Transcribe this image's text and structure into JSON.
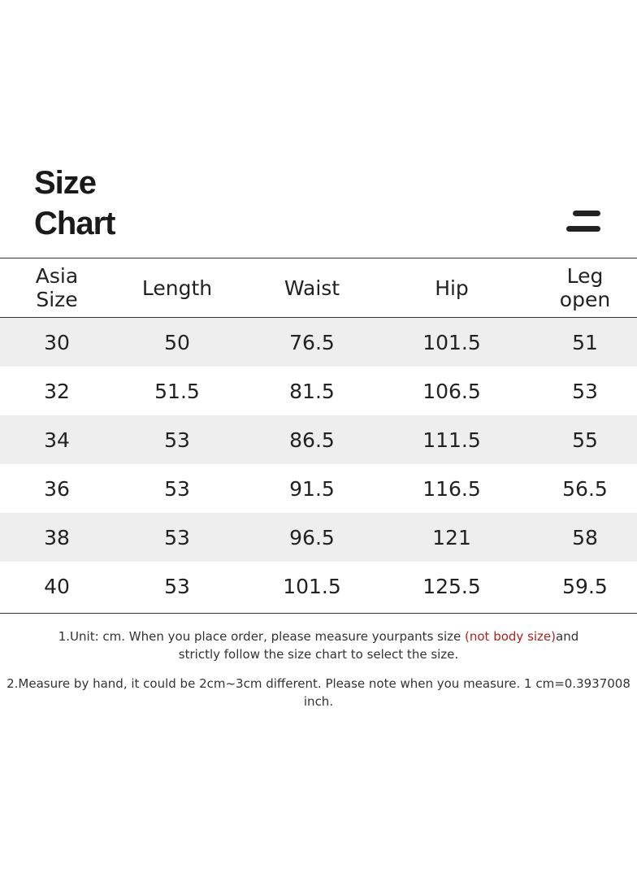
{
  "title": {
    "line1": "Size",
    "line2": "Chart"
  },
  "logo": {
    "icon": "two-bar-logo-icon"
  },
  "table": {
    "headers": [
      {
        "line1": "Asia",
        "line2": "Size"
      },
      {
        "line1": "Length",
        "line2": ""
      },
      {
        "line1": "Waist",
        "line2": ""
      },
      {
        "line1": "Hip",
        "line2": ""
      },
      {
        "line1": "Leg",
        "line2": "open"
      }
    ],
    "rows": [
      [
        "30",
        "50",
        "76.5",
        "101.5",
        "51"
      ],
      [
        "32",
        "51.5",
        "81.5",
        "106.5",
        "53"
      ],
      [
        "34",
        "53",
        "86.5",
        "111.5",
        "55"
      ],
      [
        "36",
        "53",
        "91.5",
        "116.5",
        "56.5"
      ],
      [
        "38",
        "53",
        "96.5",
        "121",
        "58"
      ],
      [
        "40",
        "53",
        "101.5",
        "125.5",
        "59.5"
      ]
    ]
  },
  "notes": {
    "note1_part1": "1.Unit: cm. When you place order, please measure yourpants size ",
    "note1_highlight": "(not body size)",
    "note1_part2": "and",
    "note1_line2": "strictly follow the size chart to select the size.",
    "note2": "2.Measure by hand, it could be 2cm~3cm different. Please note when you measure. 1 cm=0.3937008 inch."
  },
  "colors": {
    "highlight": "#b02020",
    "stripe": "#eeeeee"
  }
}
